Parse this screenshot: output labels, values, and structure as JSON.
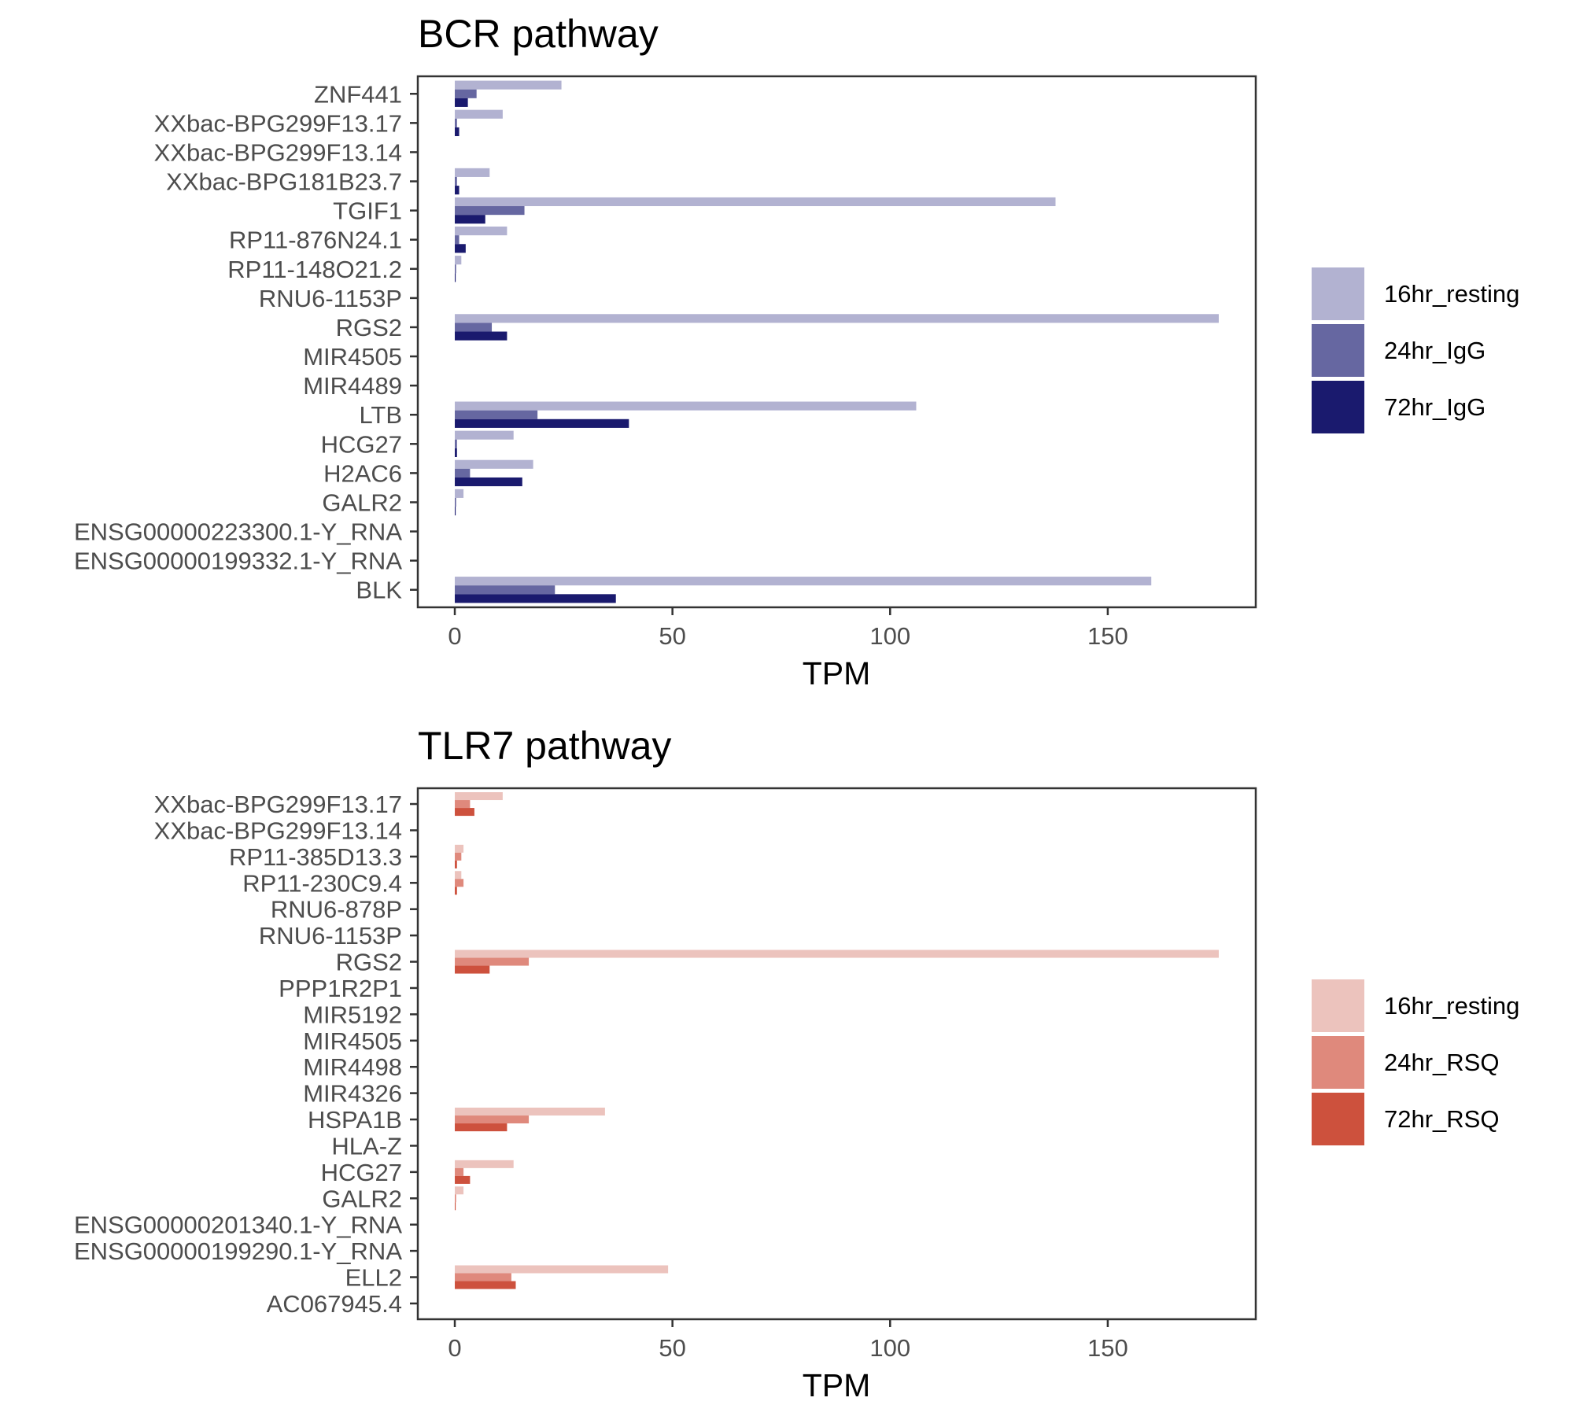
{
  "chart_data": [
    {
      "type": "bar",
      "orientation": "horizontal",
      "title": "BCR pathway",
      "xlabel": "TPM",
      "ylabel": "",
      "xlim": [
        -8.5,
        184
      ],
      "xticks": [
        0,
        50,
        100,
        150
      ],
      "grid": false,
      "legend_position": "right",
      "categories": [
        "ZNF441",
        "XXbac-BPG299F13.17",
        "XXbac-BPG299F13.14",
        "XXbac-BPG181B23.7",
        "TGIF1",
        "RP11-876N24.1",
        "RP11-148O21.2",
        "RNU6-1153P",
        "RGS2",
        "MIR4505",
        "MIR4489",
        "LTB",
        "HCG27",
        "H2AC6",
        "GALR2",
        "ENSG00000223300.1-Y_RNA",
        "ENSG00000199332.1-Y_RNA",
        "BLK"
      ],
      "series": [
        {
          "name": "16hr_resting",
          "color": "#b2b2d1",
          "values": [
            24.5,
            11,
            0,
            8,
            138,
            12,
            1.5,
            0,
            175.5,
            0,
            0,
            106,
            13.5,
            18,
            2,
            0,
            0,
            160
          ]
        },
        {
          "name": "24hr_IgG",
          "color": "#6667a1",
          "values": [
            5,
            0.5,
            0,
            0.5,
            16,
            1,
            0.3,
            0,
            8.5,
            0,
            0,
            19,
            0.5,
            3.5,
            0.3,
            0,
            0,
            23
          ]
        },
        {
          "name": "72hr_IgG",
          "color": "#1a1a6e",
          "values": [
            3,
            1,
            0,
            1,
            7,
            2.5,
            0.2,
            0,
            12,
            0,
            0,
            40,
            0.5,
            15.5,
            0.2,
            0,
            0,
            37
          ]
        }
      ]
    },
    {
      "type": "bar",
      "orientation": "horizontal",
      "title": "TLR7 pathway",
      "xlabel": "TPM",
      "ylabel": "",
      "xlim": [
        -8.5,
        184
      ],
      "xticks": [
        0,
        50,
        100,
        150
      ],
      "grid": false,
      "legend_position": "right",
      "categories": [
        "XXbac-BPG299F13.17",
        "XXbac-BPG299F13.14",
        "RP11-385D13.3",
        "RP11-230C9.4",
        "RNU6-878P",
        "RNU6-1153P",
        "RGS2",
        "PPP1R2P1",
        "MIR5192",
        "MIR4505",
        "MIR4498",
        "MIR4326",
        "HSPA1B",
        "HLA-Z",
        "HCG27",
        "GALR2",
        "ENSG00000201340.1-Y_RNA",
        "ENSG00000199290.1-Y_RNA",
        "ELL2",
        "AC067945.4"
      ],
      "series": [
        {
          "name": "16hr_resting",
          "color": "#ecc3bd",
          "values": [
            11,
            0,
            2,
            1.5,
            0,
            0,
            175.5,
            0,
            0,
            0,
            0,
            0,
            34.5,
            0,
            13.5,
            2,
            0,
            0,
            49,
            0
          ]
        },
        {
          "name": "24hr_RSQ",
          "color": "#df897c",
          "values": [
            3.5,
            0,
            1.5,
            2,
            0,
            0,
            17,
            0,
            0,
            0,
            0,
            0,
            17,
            0,
            2,
            0.3,
            0,
            0,
            13,
            0
          ]
        },
        {
          "name": "72hr_RSQ",
          "color": "#cd513d",
          "values": [
            4.5,
            0,
            0.5,
            0.5,
            0,
            0,
            8,
            0,
            0,
            0,
            0,
            0,
            12,
            0,
            3.5,
            0.2,
            0,
            0,
            14,
            0
          ]
        }
      ]
    }
  ]
}
